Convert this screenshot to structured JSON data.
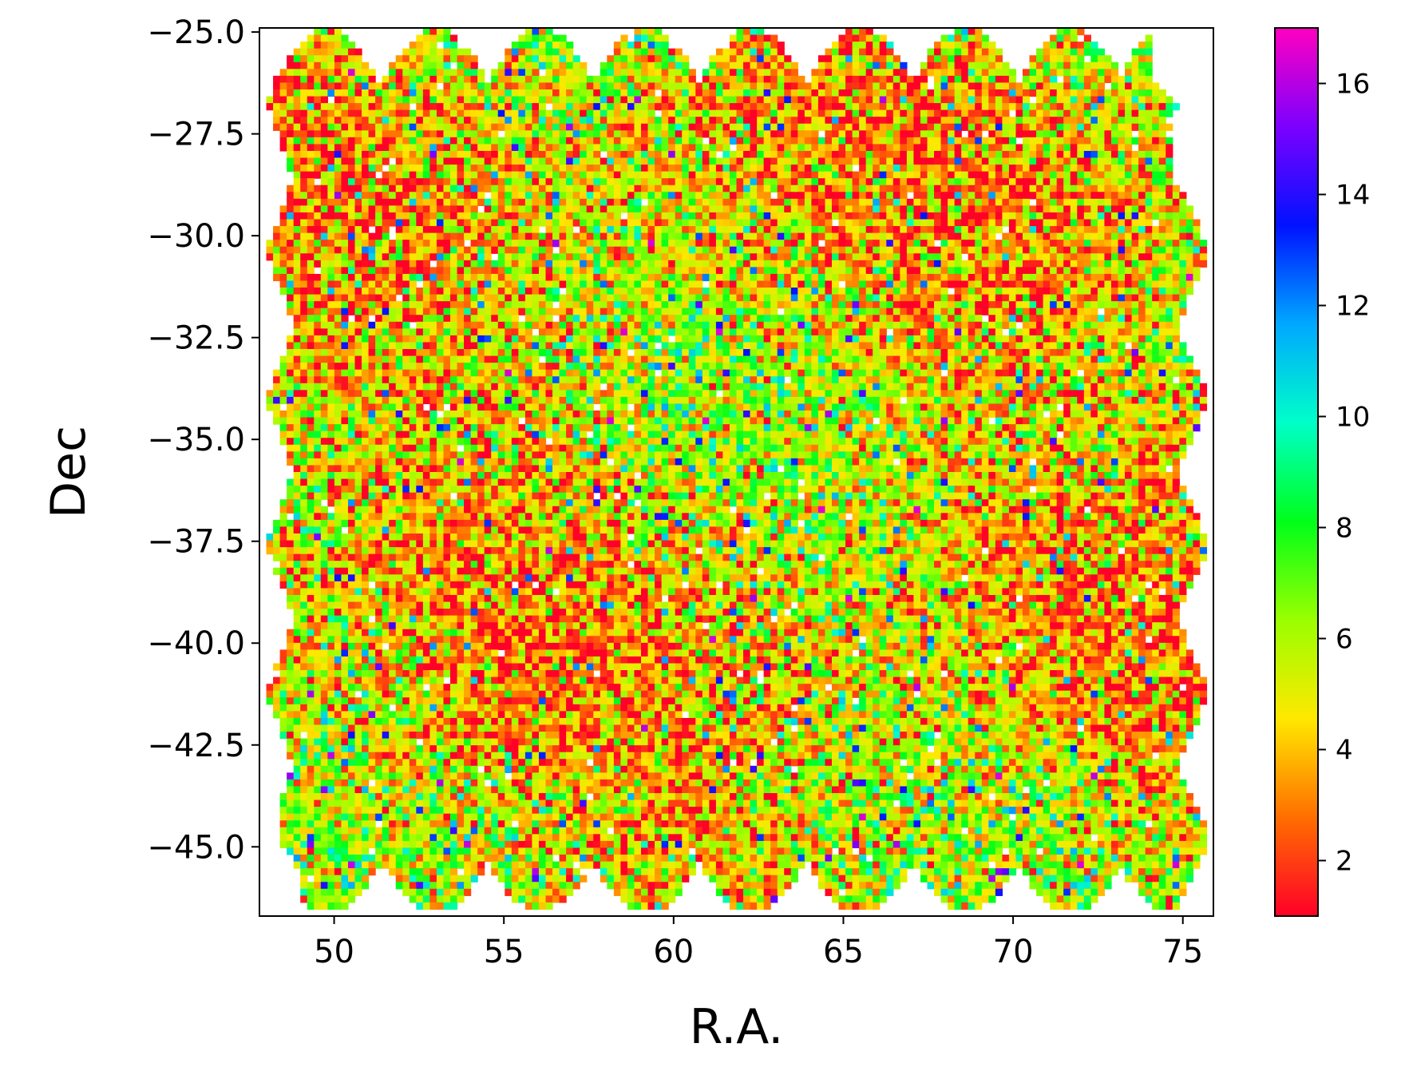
{
  "chart_data": {
    "type": "heatmap",
    "title": "",
    "xlabel": "R.A.",
    "ylabel": "Dec",
    "xlim": [
      47.8,
      75.9
    ],
    "ylim": [
      -46.7,
      -24.9
    ],
    "xticks": [
      50,
      55,
      60,
      65,
      70,
      75
    ],
    "xtick_labels": [
      "50",
      "55",
      "60",
      "65",
      "70",
      "75"
    ],
    "yticks": [
      -25.0,
      -27.5,
      -30.0,
      -32.5,
      -35.0,
      -37.5,
      -40.0,
      -42.5,
      -45.0
    ],
    "ytick_labels": [
      "−25.0",
      "−27.5",
      "−30.0",
      "−32.5",
      "−35.0",
      "−37.5",
      "−40.0",
      "−42.5",
      "−45.0"
    ],
    "colorbar": {
      "colormap": "gist_rainbow_r",
      "range": [
        1,
        17
      ],
      "ticks": [
        2,
        4,
        6,
        8,
        10,
        12,
        14,
        16
      ],
      "tick_labels": [
        "2",
        "4",
        "6",
        "8",
        "10",
        "12",
        "14",
        "16"
      ],
      "colors": [
        "#ff0028",
        "#ff6e00",
        "#ffe800",
        "#9aff00",
        "#00ff1a",
        "#00ffc8",
        "#00a8ff",
        "#0012ff",
        "#7c00ff",
        "#ff00bf"
      ]
    },
    "grid": false,
    "grid_shape": {
      "columns": 140,
      "rows": 130
    },
    "coverage": {
      "ra_range": [
        48.0,
        75.8
      ],
      "dec_range": [
        -46.6,
        -24.9
      ],
      "top_edge_scallop_centers_ra": [
        49.8,
        53.0,
        56.1,
        59.2,
        62.3,
        65.5,
        68.6,
        71.7,
        74.6
      ]
    }
  }
}
